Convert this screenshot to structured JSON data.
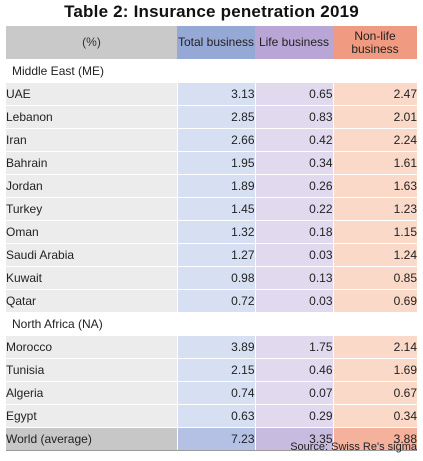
{
  "title": "Table 2: Insurance penetration 2019",
  "header": {
    "unit": "(%)",
    "total": "Total business",
    "life": "Life business",
    "nonlife": "Non-life business"
  },
  "sections": [
    {
      "label": "Middle East (ME)",
      "rows": [
        {
          "country": "UAE",
          "total": "3.13",
          "life": "0.65",
          "nonlife": "2.47"
        },
        {
          "country": "Lebanon",
          "total": "2.85",
          "life": "0.83",
          "nonlife": "2.01"
        },
        {
          "country": "Iran",
          "total": "2.66",
          "life": "0.42",
          "nonlife": "2.24"
        },
        {
          "country": "Bahrain",
          "total": "1.95",
          "life": "0.34",
          "nonlife": "1.61"
        },
        {
          "country": "Jordan",
          "total": "1.89",
          "life": "0.26",
          "nonlife": "1.63"
        },
        {
          "country": "Turkey",
          "total": "1.45",
          "life": "0.22",
          "nonlife": "1.23"
        },
        {
          "country": "Oman",
          "total": "1.32",
          "life": "0.18",
          "nonlife": "1.15"
        },
        {
          "country": "Saudi Arabia",
          "total": "1.27",
          "life": "0.03",
          "nonlife": "1.24"
        },
        {
          "country": "Kuwait",
          "total": "0.98",
          "life": "0.13",
          "nonlife": "0.85"
        },
        {
          "country": "Qatar",
          "total": "0.72",
          "life": "0.03",
          "nonlife": "0.69"
        }
      ]
    },
    {
      "label": "North Africa (NA)",
      "rows": [
        {
          "country": "Morocco",
          "total": "3.89",
          "life": "1.75",
          "nonlife": "2.14"
        },
        {
          "country": "Tunisia",
          "total": "2.15",
          "life": "0.46",
          "nonlife": "1.69"
        },
        {
          "country": "Algeria",
          "total": "0.74",
          "life": "0.07",
          "nonlife": "0.67"
        },
        {
          "country": "Egypt",
          "total": "0.63",
          "life": "0.29",
          "nonlife": "0.34"
        }
      ]
    }
  ],
  "world": {
    "country": "World (average)",
    "total": "7.23",
    "life": "3.35",
    "nonlife": "3.88"
  },
  "source": "Source: Swiss Re's sigma",
  "colors": {
    "total_header": "#96a9d6",
    "life_header": "#b9a6d6",
    "nonlife_header": "#f19a82"
  }
}
